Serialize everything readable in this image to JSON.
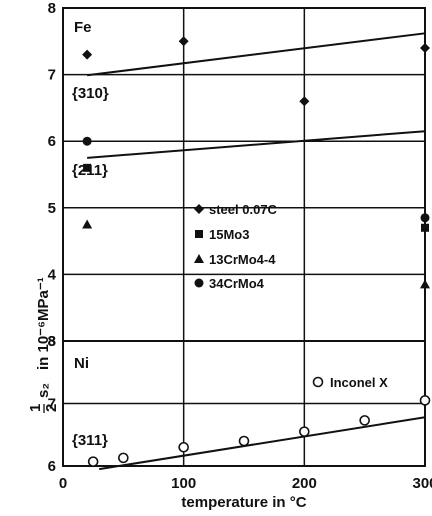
{
  "chart_data": [
    {
      "type": "scatter",
      "panel_label": "Fe",
      "plane_labels": [
        "{310}",
        "{211}"
      ],
      "ylim": [
        3,
        8
      ],
      "yticks": [
        "3",
        "4",
        "5",
        "6",
        "7",
        "8"
      ],
      "xlim": [
        0,
        300
      ],
      "grid": true,
      "legend_position": "center",
      "series": [
        {
          "name": "steel 0.07C",
          "marker": "diamond",
          "points": [
            [
              20,
              7.3
            ],
            [
              100,
              7.5
            ],
            [
              200,
              6.6
            ],
            [
              300,
              7.4
            ]
          ]
        },
        {
          "name": "15Mo3",
          "marker": "square",
          "points": [
            [
              20,
              5.6
            ],
            [
              300,
              4.7
            ]
          ]
        },
        {
          "name": "13CrMo4-4",
          "marker": "triangle",
          "points": [
            [
              20,
              4.75
            ],
            [
              300,
              3.85
            ]
          ]
        },
        {
          "name": "34CrMo4",
          "marker": "circle",
          "points": [
            [
              20,
              6.0
            ],
            [
              300,
              4.85
            ]
          ]
        }
      ],
      "fit_lines": [
        {
          "x": [
            20,
            300
          ],
          "y": [
            6.99,
            7.62
          ]
        },
        {
          "x": [
            20,
            300
          ],
          "y": [
            5.75,
            6.15
          ]
        }
      ]
    },
    {
      "type": "scatter",
      "panel_label": "Ni",
      "plane_labels": [
        "{311}"
      ],
      "ylim": [
        6,
        8
      ],
      "yticks": [
        "6",
        "7",
        "8"
      ],
      "xlim": [
        0,
        300
      ],
      "xticks": [
        "0",
        "100",
        "200",
        "300"
      ],
      "grid": true,
      "legend_position": "top-right",
      "series": [
        {
          "name": "Inconel X",
          "marker": "open-circle",
          "points": [
            [
              25,
              6.07
            ],
            [
              50,
              6.13
            ],
            [
              100,
              6.3
            ],
            [
              150,
              6.4
            ],
            [
              200,
              6.55
            ],
            [
              250,
              6.73
            ],
            [
              300,
              7.05
            ]
          ]
        }
      ],
      "fit_lines": [
        {
          "x": [
            30,
            300
          ],
          "y": [
            5.95,
            6.78
          ]
        }
      ]
    }
  ],
  "axis": {
    "xlabel": "temperature in °C",
    "ylabel_unit": "in 10⁻⁶MPa⁻¹",
    "ylabel_frac_num": "1",
    "ylabel_frac_den": "2",
    "ylabel_sym": "s₂"
  }
}
